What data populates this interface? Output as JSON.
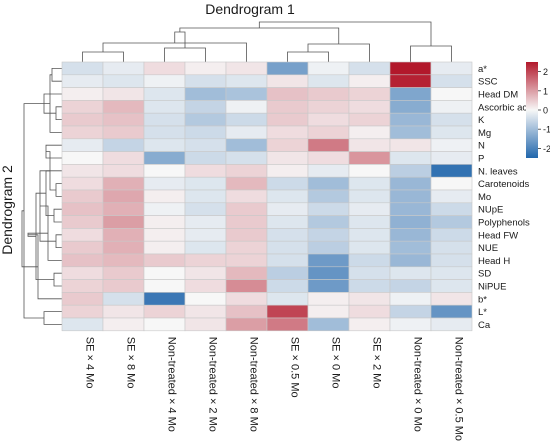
{
  "chart_data": {
    "type": "heatmap",
    "title": "Dendrogram 1",
    "row_title": "Dendrogram 2",
    "columns": [
      "SE × 4 Mo",
      "SE × 8 Mo",
      "Non-treated × 4 Mo",
      "Non-treated × 2 Mo",
      "Non-treated × 8 Mo",
      "SE × 0.5 Mo",
      "SE × 0 Mo",
      "SE × 2 Mo",
      "Non-treated × 0 Mo",
      "Non-treated × 0.5 Mo"
    ],
    "rows": [
      "a*",
      "SSC",
      "Head DM",
      "Ascorbic acid",
      "K",
      "Mg",
      "N",
      "P",
      "N. leaves",
      "Carotenoids",
      "Mo",
      "NUpE",
      "Polyphenols",
      "Head FW",
      "NUE",
      "Head H",
      "SD",
      "NiPUE",
      "b*",
      "L*",
      "Ca"
    ],
    "values": [
      [
        -0.4,
        -0.2,
        0.3,
        0.1,
        0.2,
        -1.5,
        -0.1,
        -0.4,
        2.5,
        -0.2
      ],
      [
        -0.2,
        -0.3,
        -0.1,
        -0.4,
        -0.3,
        0.2,
        -0.3,
        0.1,
        2.4,
        -0.4
      ],
      [
        0.1,
        0.2,
        -0.3,
        -1.0,
        -0.9,
        0.6,
        0.5,
        0.4,
        -1.4,
        0.0
      ],
      [
        0.4,
        0.7,
        -0.3,
        -0.6,
        -0.1,
        0.5,
        0.4,
        0.3,
        -1.3,
        -0.1
      ],
      [
        0.5,
        0.6,
        -0.4,
        -0.8,
        -0.5,
        0.5,
        0.3,
        0.4,
        -1.1,
        -0.4
      ],
      [
        0.4,
        0.5,
        -0.4,
        -0.5,
        -0.2,
        0.3,
        0.4,
        0.1,
        -1.0,
        -0.3
      ],
      [
        -0.2,
        -0.6,
        -0.3,
        -0.4,
        -1.0,
        0.4,
        1.4,
        0.2,
        0.2,
        -0.1
      ],
      [
        0.0,
        0.3,
        -1.3,
        -0.5,
        -0.4,
        0.2,
        0.3,
        1.1,
        -0.3,
        -0.2
      ],
      [
        0.2,
        0.3,
        0.0,
        0.3,
        0.4,
        0.1,
        -0.2,
        0.0,
        -0.7,
        -2.3
      ],
      [
        0.3,
        0.8,
        -0.2,
        -0.3,
        0.7,
        -0.5,
        -1.0,
        -0.3,
        -1.1,
        0.0
      ],
      [
        0.5,
        0.9,
        0.1,
        -0.3,
        0.3,
        -0.3,
        -0.8,
        -0.3,
        -1.1,
        -0.2
      ],
      [
        0.6,
        0.8,
        -0.1,
        -0.4,
        0.5,
        -0.2,
        -0.5,
        -0.2,
        -1.1,
        -0.5
      ],
      [
        0.5,
        1.0,
        0.1,
        -0.2,
        0.5,
        -0.3,
        -0.8,
        -0.3,
        -1.2,
        -0.8
      ],
      [
        0.3,
        0.8,
        0.1,
        -0.2,
        0.5,
        -0.4,
        -0.6,
        -0.3,
        -1.1,
        -0.5
      ],
      [
        0.5,
        0.8,
        0.1,
        -0.3,
        0.4,
        -0.4,
        -0.7,
        -0.3,
        -1.0,
        -0.4
      ],
      [
        0.6,
        0.7,
        0.5,
        0.4,
        0.4,
        -0.4,
        -1.6,
        -0.5,
        -1.1,
        -0.4
      ],
      [
        0.3,
        0.5,
        0.0,
        0.2,
        0.7,
        -0.7,
        -1.7,
        -0.4,
        -0.3,
        -0.3
      ],
      [
        0.4,
        0.5,
        0.0,
        0.3,
        1.2,
        -0.5,
        -1.6,
        -0.5,
        -0.6,
        -0.3
      ],
      [
        0.5,
        -0.4,
        -2.2,
        0.0,
        0.3,
        -0.3,
        0.1,
        0.2,
        -0.1,
        0.2
      ],
      [
        0.4,
        0.2,
        0.4,
        0.2,
        0.6,
        2.0,
        0.1,
        0.3,
        -0.6,
        -1.7
      ],
      [
        -0.3,
        0.1,
        0.0,
        0.2,
        1.0,
        1.4,
        -1.0,
        0.1,
        -0.1,
        -0.2
      ]
    ],
    "colorbar": {
      "ticks": [
        -2,
        -1,
        0,
        1,
        2
      ],
      "min": -2.5,
      "max": 2.5
    },
    "colors": {
      "low": "#2166ac",
      "mid": "#f7f7f7",
      "high": "#b2182b"
    }
  }
}
